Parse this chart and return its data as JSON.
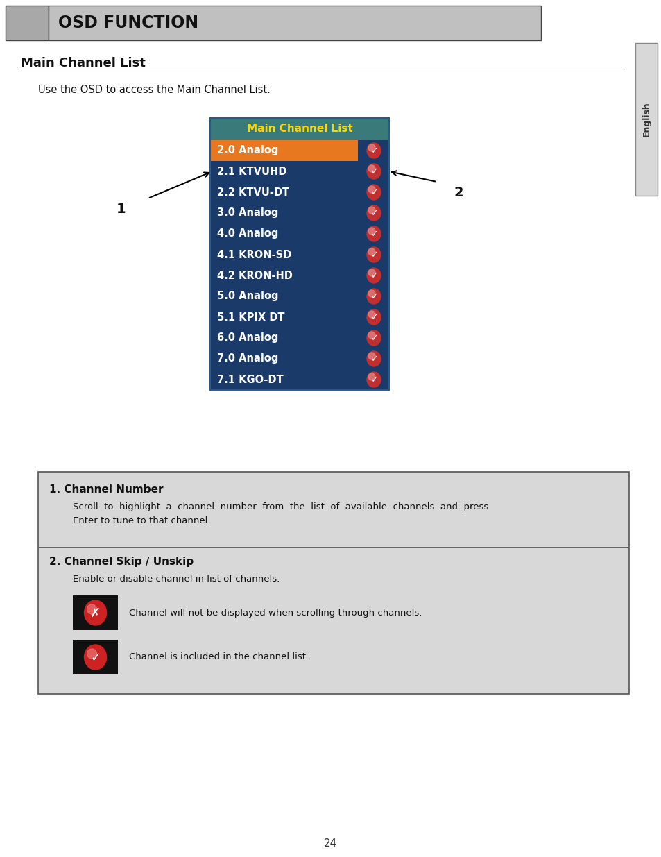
{
  "title_bar_text": "OSD FUNCTION",
  "title_bar_bg": "#c0c0c0",
  "title_bar_left_bg": "#a8a8a8",
  "page_bg": "#ffffff",
  "section_title": "Main Channel List",
  "intro_text": "Use the OSD to access the Main Channel List.",
  "english_sidebar_text": "English",
  "english_sidebar_bg": "#d0d0d0",
  "osd_title": "Main Channel List",
  "osd_title_bg": "#3a7a7a",
  "osd_title_color": "#ffd700",
  "osd_bg": "#1a3a6a",
  "osd_highlight_bg": "#e87820",
  "osd_text_color": "#ffffff",
  "osd_channels": [
    "2.0 Analog",
    "2.1 KTVUHD",
    "2.2 KTVU-DT",
    "3.0 Analog",
    "4.0 Analog",
    "4.1 KRON-SD",
    "4.2 KRON-HD",
    "5.0 Analog",
    "5.1 KPIX DT",
    "6.0 Analog",
    "7.0 Analog",
    "7.1 KGO-DT"
  ],
  "arrow1_label": "1",
  "arrow2_label": "2",
  "info_box_bg": "#d8d8d8",
  "info_box_border": "#555555",
  "section1_title": "1. Channel Number",
  "section1_line1": "Scroll  to  highlight  a  channel  number  from  the  list  of  available  channels  and  press",
  "section1_line2": "Enter to tune to that channel.",
  "section2_title": "2. Channel Skip / Unskip",
  "section2_text": "Enable or disable channel in list of channels.",
  "icon_x_text": "Channel will not be displayed when scrolling through channels.",
  "icon_check_text": "Channel is included in the channel list.",
  "page_number": "24"
}
